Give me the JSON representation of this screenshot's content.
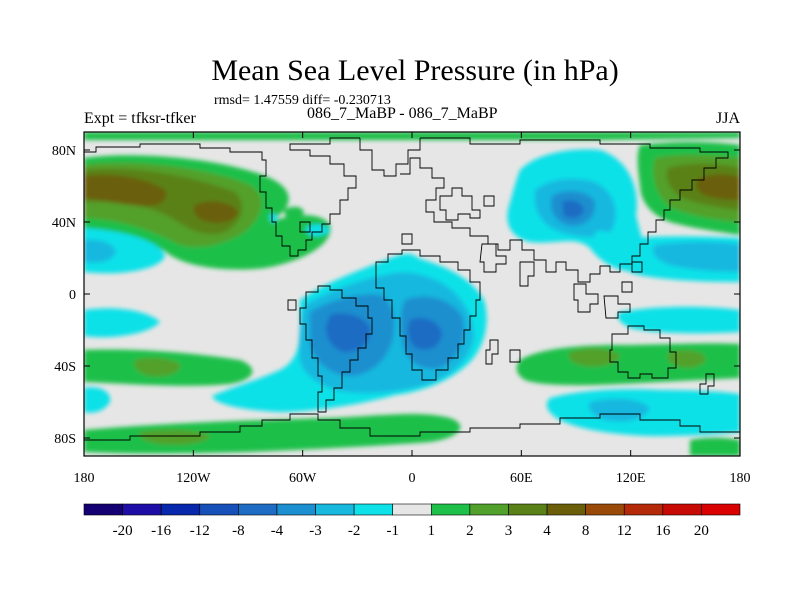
{
  "header": {
    "title": "Mean Sea Level Pressure (in hPa)",
    "stats": "rmsd= 1.47559 diff= -0.230713",
    "experiment": "Expt = tfksr-tfker",
    "comparison": "086_7_MaBP - 086_7_MaBP",
    "season": "JJA"
  },
  "chart_data": {
    "type": "heatmap",
    "title": "Mean Sea Level Pressure (in hPa)",
    "xlabel": "",
    "ylabel": "",
    "x_ticks": [
      "180",
      "120W",
      "60W",
      "0",
      "60E",
      "120E",
      "180"
    ],
    "y_ticks": [
      "80N",
      "40N",
      "0",
      "40S",
      "80S"
    ],
    "x_range": [
      -180,
      180
    ],
    "y_range": [
      -90,
      90
    ],
    "colorbar": {
      "labels": [
        "-20",
        "-16",
        "-12",
        "-8",
        "-4",
        "-3",
        "-2",
        "-1",
        "1",
        "2",
        "3",
        "4",
        "8",
        "12",
        "16",
        "20"
      ],
      "colors": [
        "#150073",
        "#1f0ea6",
        "#0727ac",
        "#1650b8",
        "#1e6cc4",
        "#1b8fcf",
        "#18b8df",
        "#0ee1e8",
        "#e6e6e6",
        "#1ec04a",
        "#52a02c",
        "#5a8118",
        "#6a5e0a",
        "#9a4a08",
        "#b42a08",
        "#c80a04",
        "#d80000"
      ]
    },
    "anomalies": [
      {
        "lon": -150,
        "lat": 50,
        "level": "8"
      },
      {
        "lon": -100,
        "lat": 50,
        "level": "4"
      },
      {
        "lon": -165,
        "lat": 22,
        "level": "-2"
      },
      {
        "lon": -30,
        "lat": -20,
        "level": "-4"
      },
      {
        "lon": 5,
        "lat": -20,
        "level": "-4"
      },
      {
        "lon": 95,
        "lat": 45,
        "level": "-4"
      },
      {
        "lon": 160,
        "lat": 55,
        "level": "4"
      },
      {
        "lon": 150,
        "lat": 25,
        "level": "-2"
      },
      {
        "lon": -135,
        "lat": -40,
        "level": "3"
      },
      {
        "lon": 150,
        "lat": -35,
        "level": "3"
      },
      {
        "lon": 100,
        "lat": -60,
        "level": "-2"
      },
      {
        "lon": -60,
        "lat": -78,
        "level": "2"
      }
    ]
  }
}
